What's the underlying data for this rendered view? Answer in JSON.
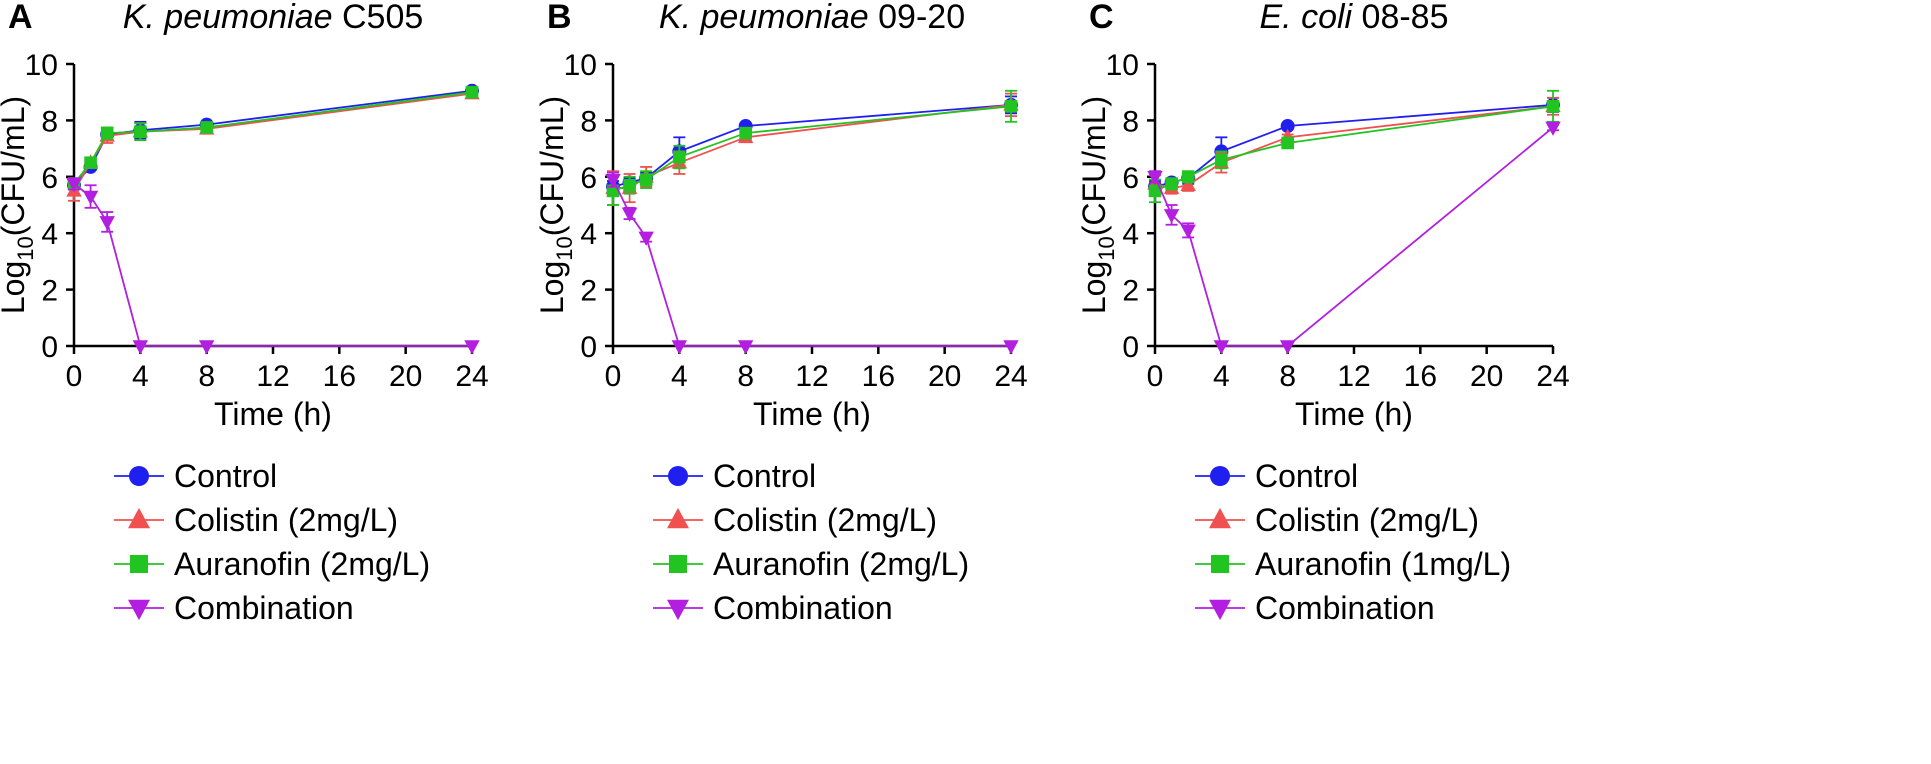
{
  "colors": {
    "Control": "#1f1ff0",
    "Colistin": "#f05050",
    "Auranofin": "#22c422",
    "Combination": "#b21fe0"
  },
  "chart_data": [
    {
      "type": "line",
      "panel_letter": "A",
      "title_italic": "K. peumoniae",
      "title_rest": " C505",
      "xlabel": "Time (h)",
      "ylabel_main": "Log",
      "ylabel_sub": "10",
      "ylabel_rest": "(CFU/mL)",
      "xlim": [
        0,
        24
      ],
      "ylim": [
        0,
        10
      ],
      "xticks": [
        0,
        4,
        8,
        12,
        16,
        20,
        24
      ],
      "yticks": [
        0,
        2,
        4,
        6,
        8,
        10
      ],
      "x": [
        0,
        1,
        2,
        4,
        8,
        24
      ],
      "series": [
        {
          "name": "Control",
          "label": "Control",
          "marker": "circle",
          "values": [
            5.7,
            6.35,
            7.5,
            7.65,
            7.85,
            9.05
          ],
          "errors": [
            0.15,
            0.1,
            0.15,
            0.3,
            0.1,
            0.1
          ]
        },
        {
          "name": "Colistin",
          "label": "Colistin (2mg/L)",
          "marker": "triangle-up",
          "values": [
            5.5,
            6.5,
            7.45,
            7.6,
            7.7,
            8.95
          ],
          "errors": [
            0.35,
            0.15,
            0.25,
            0.3,
            0.15,
            0.1
          ]
        },
        {
          "name": "Auranofin",
          "label": "Auranofin (2mg/L)",
          "marker": "square",
          "values": [
            5.75,
            6.5,
            7.55,
            7.6,
            7.75,
            9.0
          ],
          "errors": [
            0.2,
            0.15,
            0.2,
            0.3,
            0.1,
            0.1
          ]
        },
        {
          "name": "Combination",
          "label": "Combination",
          "marker": "triangle-down",
          "values": [
            5.75,
            5.3,
            4.4,
            0,
            0,
            0
          ],
          "errors": [
            0.2,
            0.4,
            0.35,
            0,
            0,
            0
          ]
        }
      ]
    },
    {
      "type": "line",
      "panel_letter": "B",
      "title_italic": "K. peumoniae",
      "title_rest": " 09-20",
      "xlabel": "Time (h)",
      "ylabel_main": "Log",
      "ylabel_sub": "10",
      "ylabel_rest": "(CFU/mL)",
      "xlim": [
        0,
        24
      ],
      "ylim": [
        0,
        10
      ],
      "xticks": [
        0,
        4,
        8,
        12,
        16,
        20,
        24
      ],
      "yticks": [
        0,
        2,
        4,
        6,
        8,
        10
      ],
      "x": [
        0,
        1,
        2,
        4,
        8,
        24
      ],
      "series": [
        {
          "name": "Control",
          "label": "Control",
          "marker": "circle",
          "values": [
            5.65,
            5.8,
            5.95,
            6.9,
            7.8,
            8.55
          ],
          "errors": [
            0.2,
            0.15,
            0.2,
            0.5,
            0.1,
            0.3
          ]
        },
        {
          "name": "Colistin",
          "label": "Colistin (2mg/L)",
          "marker": "triangle-up",
          "values": [
            5.6,
            5.6,
            6.0,
            6.5,
            7.4,
            8.55
          ],
          "errors": [
            0.6,
            0.5,
            0.35,
            0.4,
            0.15,
            0.4
          ]
        },
        {
          "name": "Auranofin",
          "label": "Auranofin (2mg/L)",
          "marker": "square",
          "values": [
            5.5,
            5.7,
            5.9,
            6.7,
            7.55,
            8.5
          ],
          "errors": [
            0.5,
            0.3,
            0.3,
            0.4,
            0.1,
            0.55
          ]
        },
        {
          "name": "Combination",
          "label": "Combination",
          "marker": "triangle-down",
          "values": [
            5.9,
            4.7,
            3.85,
            0,
            0,
            0
          ],
          "errors": [
            0.25,
            0.2,
            0.15,
            0,
            0,
            0
          ]
        }
      ]
    },
    {
      "type": "line",
      "panel_letter": "C",
      "title_italic": "E. coli",
      "title_rest": " 08-85",
      "xlabel": "Time (h)",
      "ylabel_main": "Log",
      "ylabel_sub": "10",
      "ylabel_rest": "(CFU/mL)",
      "xlim": [
        0,
        24
      ],
      "ylim": [
        0,
        10
      ],
      "xticks": [
        0,
        4,
        8,
        12,
        16,
        20,
        24
      ],
      "yticks": [
        0,
        2,
        4,
        6,
        8,
        10
      ],
      "x": [
        0,
        1,
        2,
        4,
        8,
        24
      ],
      "series": [
        {
          "name": "Control",
          "label": "Control",
          "marker": "circle",
          "values": [
            5.65,
            5.8,
            5.95,
            6.9,
            7.8,
            8.55
          ],
          "errors": [
            0.2,
            0.1,
            0.2,
            0.5,
            0.1,
            0.25
          ]
        },
        {
          "name": "Colistin",
          "label": "Colistin (2mg/L)",
          "marker": "triangle-up",
          "values": [
            5.75,
            5.6,
            5.7,
            6.5,
            7.4,
            8.5
          ],
          "errors": [
            0.3,
            0.2,
            0.2,
            0.35,
            0.1,
            0.3
          ]
        },
        {
          "name": "Auranofin",
          "label": "Auranofin (1mg/L)",
          "marker": "square",
          "values": [
            5.5,
            5.75,
            6.0,
            6.6,
            7.2,
            8.5
          ],
          "errors": [
            0.4,
            0.2,
            0.2,
            0.3,
            0.1,
            0.55
          ]
        },
        {
          "name": "Combination",
          "label": "Combination",
          "marker": "triangle-down",
          "values": [
            6.0,
            4.65,
            4.1,
            0,
            0,
            7.75
          ],
          "errors": [
            0.2,
            0.35,
            0.25,
            0,
            0,
            0.1
          ]
        }
      ]
    }
  ]
}
